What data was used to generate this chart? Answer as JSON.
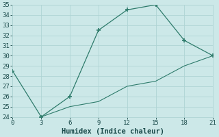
{
  "line1_x": [
    0,
    3,
    6,
    9,
    12,
    15,
    18,
    21
  ],
  "line1_y": [
    28.5,
    24,
    26,
    32.5,
    34.5,
    35,
    31.5,
    30
  ],
  "line2_x": [
    3,
    6,
    9,
    12,
    15,
    18,
    21
  ],
  "line2_y": [
    24,
    25,
    25.5,
    27,
    27.5,
    29,
    30
  ],
  "xlabel": "Humidex (Indice chaleur)",
  "color": "#2e7b6b",
  "bg_color": "#cce8e8",
  "grid_color": "#afd4d4",
  "xlim": [
    0,
    21
  ],
  "ylim": [
    24,
    35
  ],
  "xticks": [
    0,
    3,
    6,
    9,
    12,
    15,
    18,
    21
  ],
  "yticks": [
    24,
    25,
    26,
    27,
    28,
    29,
    30,
    31,
    32,
    33,
    34,
    35
  ],
  "font_color": "#1a4a4a",
  "xlabel_fontsize": 7.5,
  "tick_fontsize": 6.5
}
